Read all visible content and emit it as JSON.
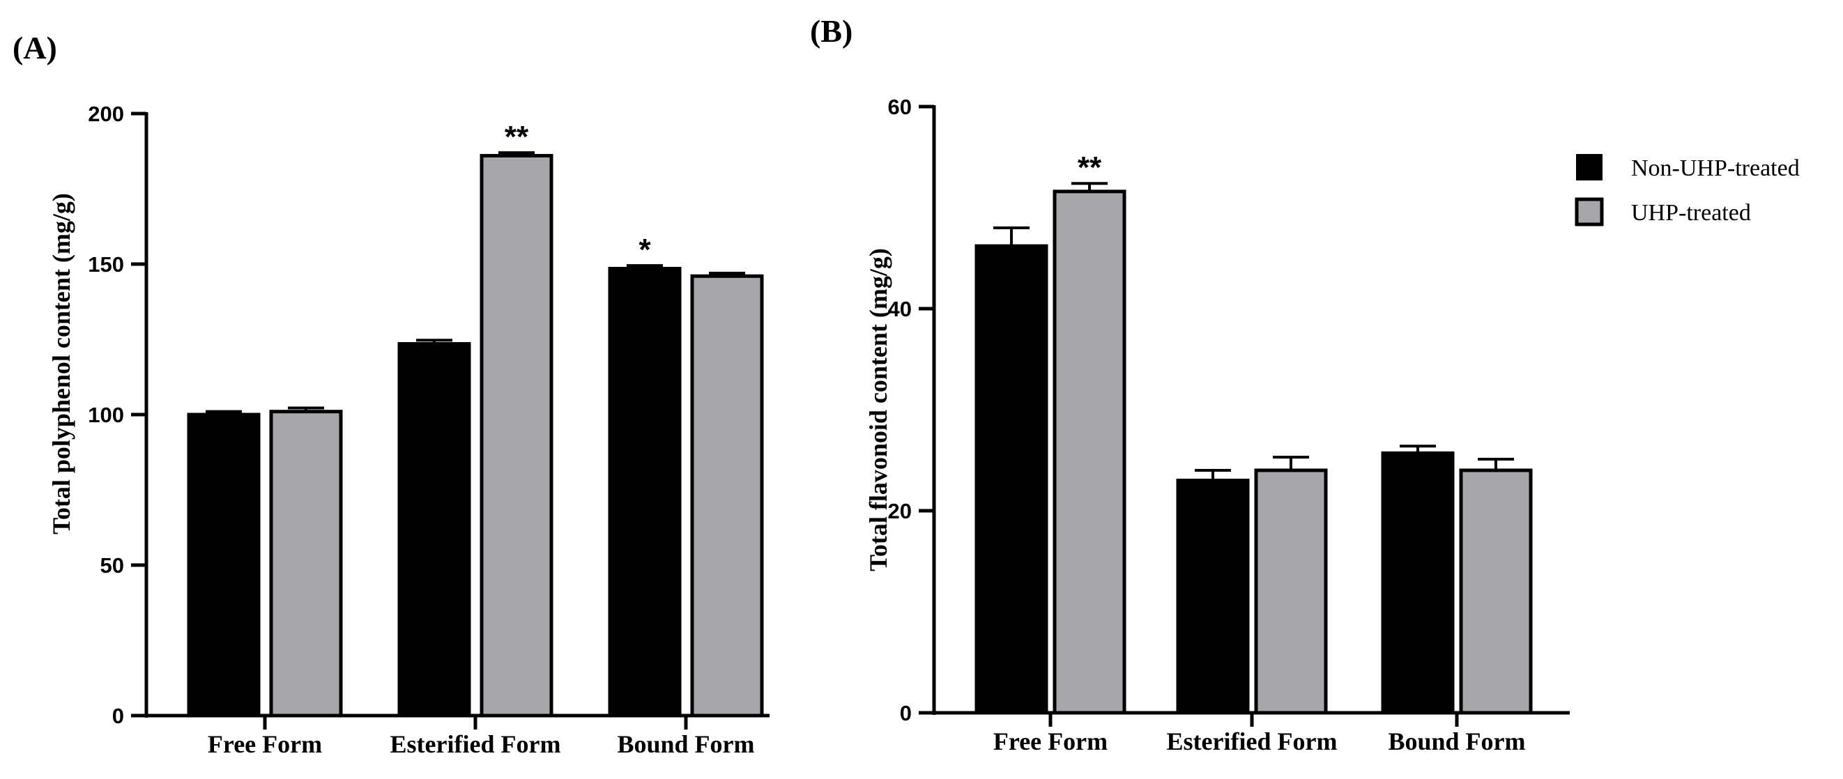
{
  "colors": {
    "non_uhp": "#000000",
    "uhp": "#a7a6ab",
    "axis": "#000000"
  },
  "legend": {
    "entries": [
      "Non-UHP-treated",
      "UHP-treated"
    ]
  },
  "chart_data": [
    {
      "type": "bar",
      "panel_label": "(A)",
      "title": "",
      "xlabel": "",
      "ylabel": "Total polyphenol content (mg/g)",
      "categories": [
        "Free Form",
        "Esterified Form",
        "Bound Form"
      ],
      "ylim": [
        0,
        200
      ],
      "yticks": [
        0,
        50,
        100,
        150,
        200
      ],
      "series": [
        {
          "name": "Non-UHP-treated",
          "values": [
            100,
            123.5,
            148.5
          ],
          "errors": [
            1.0,
            1.2,
            1.0
          ],
          "significance": [
            "",
            "",
            "*"
          ]
        },
        {
          "name": "UHP-treated",
          "values": [
            101,
            186,
            146
          ],
          "errors": [
            1.2,
            1.0,
            1.0
          ],
          "significance": [
            "",
            "**",
            ""
          ]
        }
      ]
    },
    {
      "type": "bar",
      "panel_label": "(B)",
      "title": "",
      "xlabel": "",
      "ylabel": "Total flavonoid content (mg/g)",
      "categories": [
        "Free Form",
        "Esterified Form",
        "Bound Form"
      ],
      "ylim": [
        0,
        60
      ],
      "yticks": [
        0,
        20,
        40,
        60
      ],
      "series": [
        {
          "name": "Non-UHP-treated",
          "values": [
            46.2,
            23.0,
            25.7
          ],
          "errors": [
            1.8,
            1.0,
            0.7
          ],
          "significance": [
            "",
            "",
            ""
          ]
        },
        {
          "name": "UHP-treated",
          "values": [
            51.6,
            24.0,
            24.0
          ],
          "errors": [
            0.8,
            1.3,
            1.1
          ],
          "significance": [
            "**",
            "",
            ""
          ]
        }
      ]
    }
  ]
}
